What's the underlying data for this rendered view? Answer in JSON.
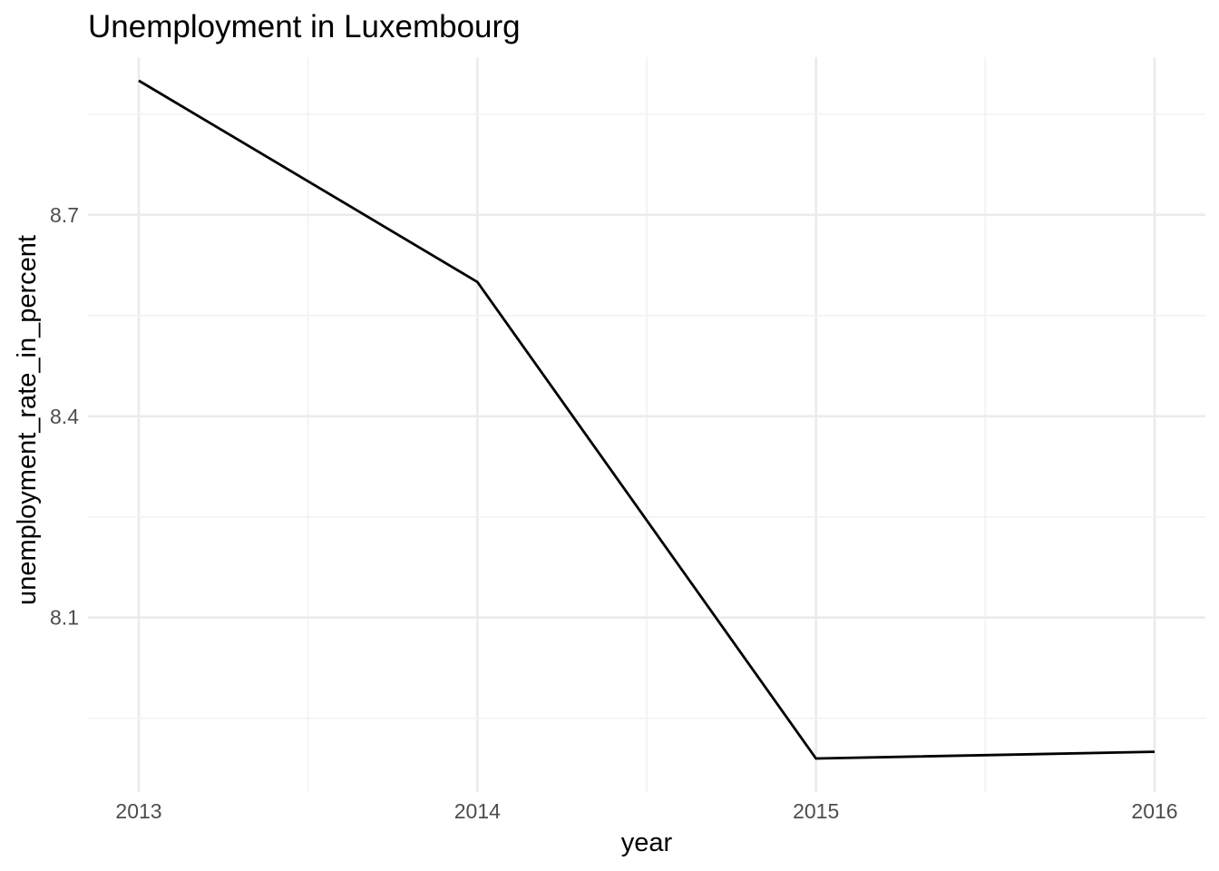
{
  "chart_data": {
    "type": "line",
    "title": "Unemployment in Luxembourg",
    "xlabel": "year",
    "ylabel": "unemployment_rate_in_percent",
    "x": [
      2013,
      2014,
      2015,
      2016
    ],
    "series": [
      {
        "values": [
          8.9,
          8.6,
          7.89,
          7.9
        ],
        "color": "#000000"
      }
    ],
    "x_ticks": [
      2013,
      2014,
      2015,
      2016
    ],
    "x_tick_labels": [
      "2013",
      "2014",
      "2015",
      "2016"
    ],
    "y_ticks": [
      8.1,
      8.4,
      8.7
    ],
    "y_tick_labels": [
      "8.1",
      "8.4",
      "8.7"
    ],
    "xlim": [
      2012.85,
      2016.15
    ],
    "ylim": [
      7.84,
      8.935
    ],
    "grid": true,
    "legend": "none"
  }
}
